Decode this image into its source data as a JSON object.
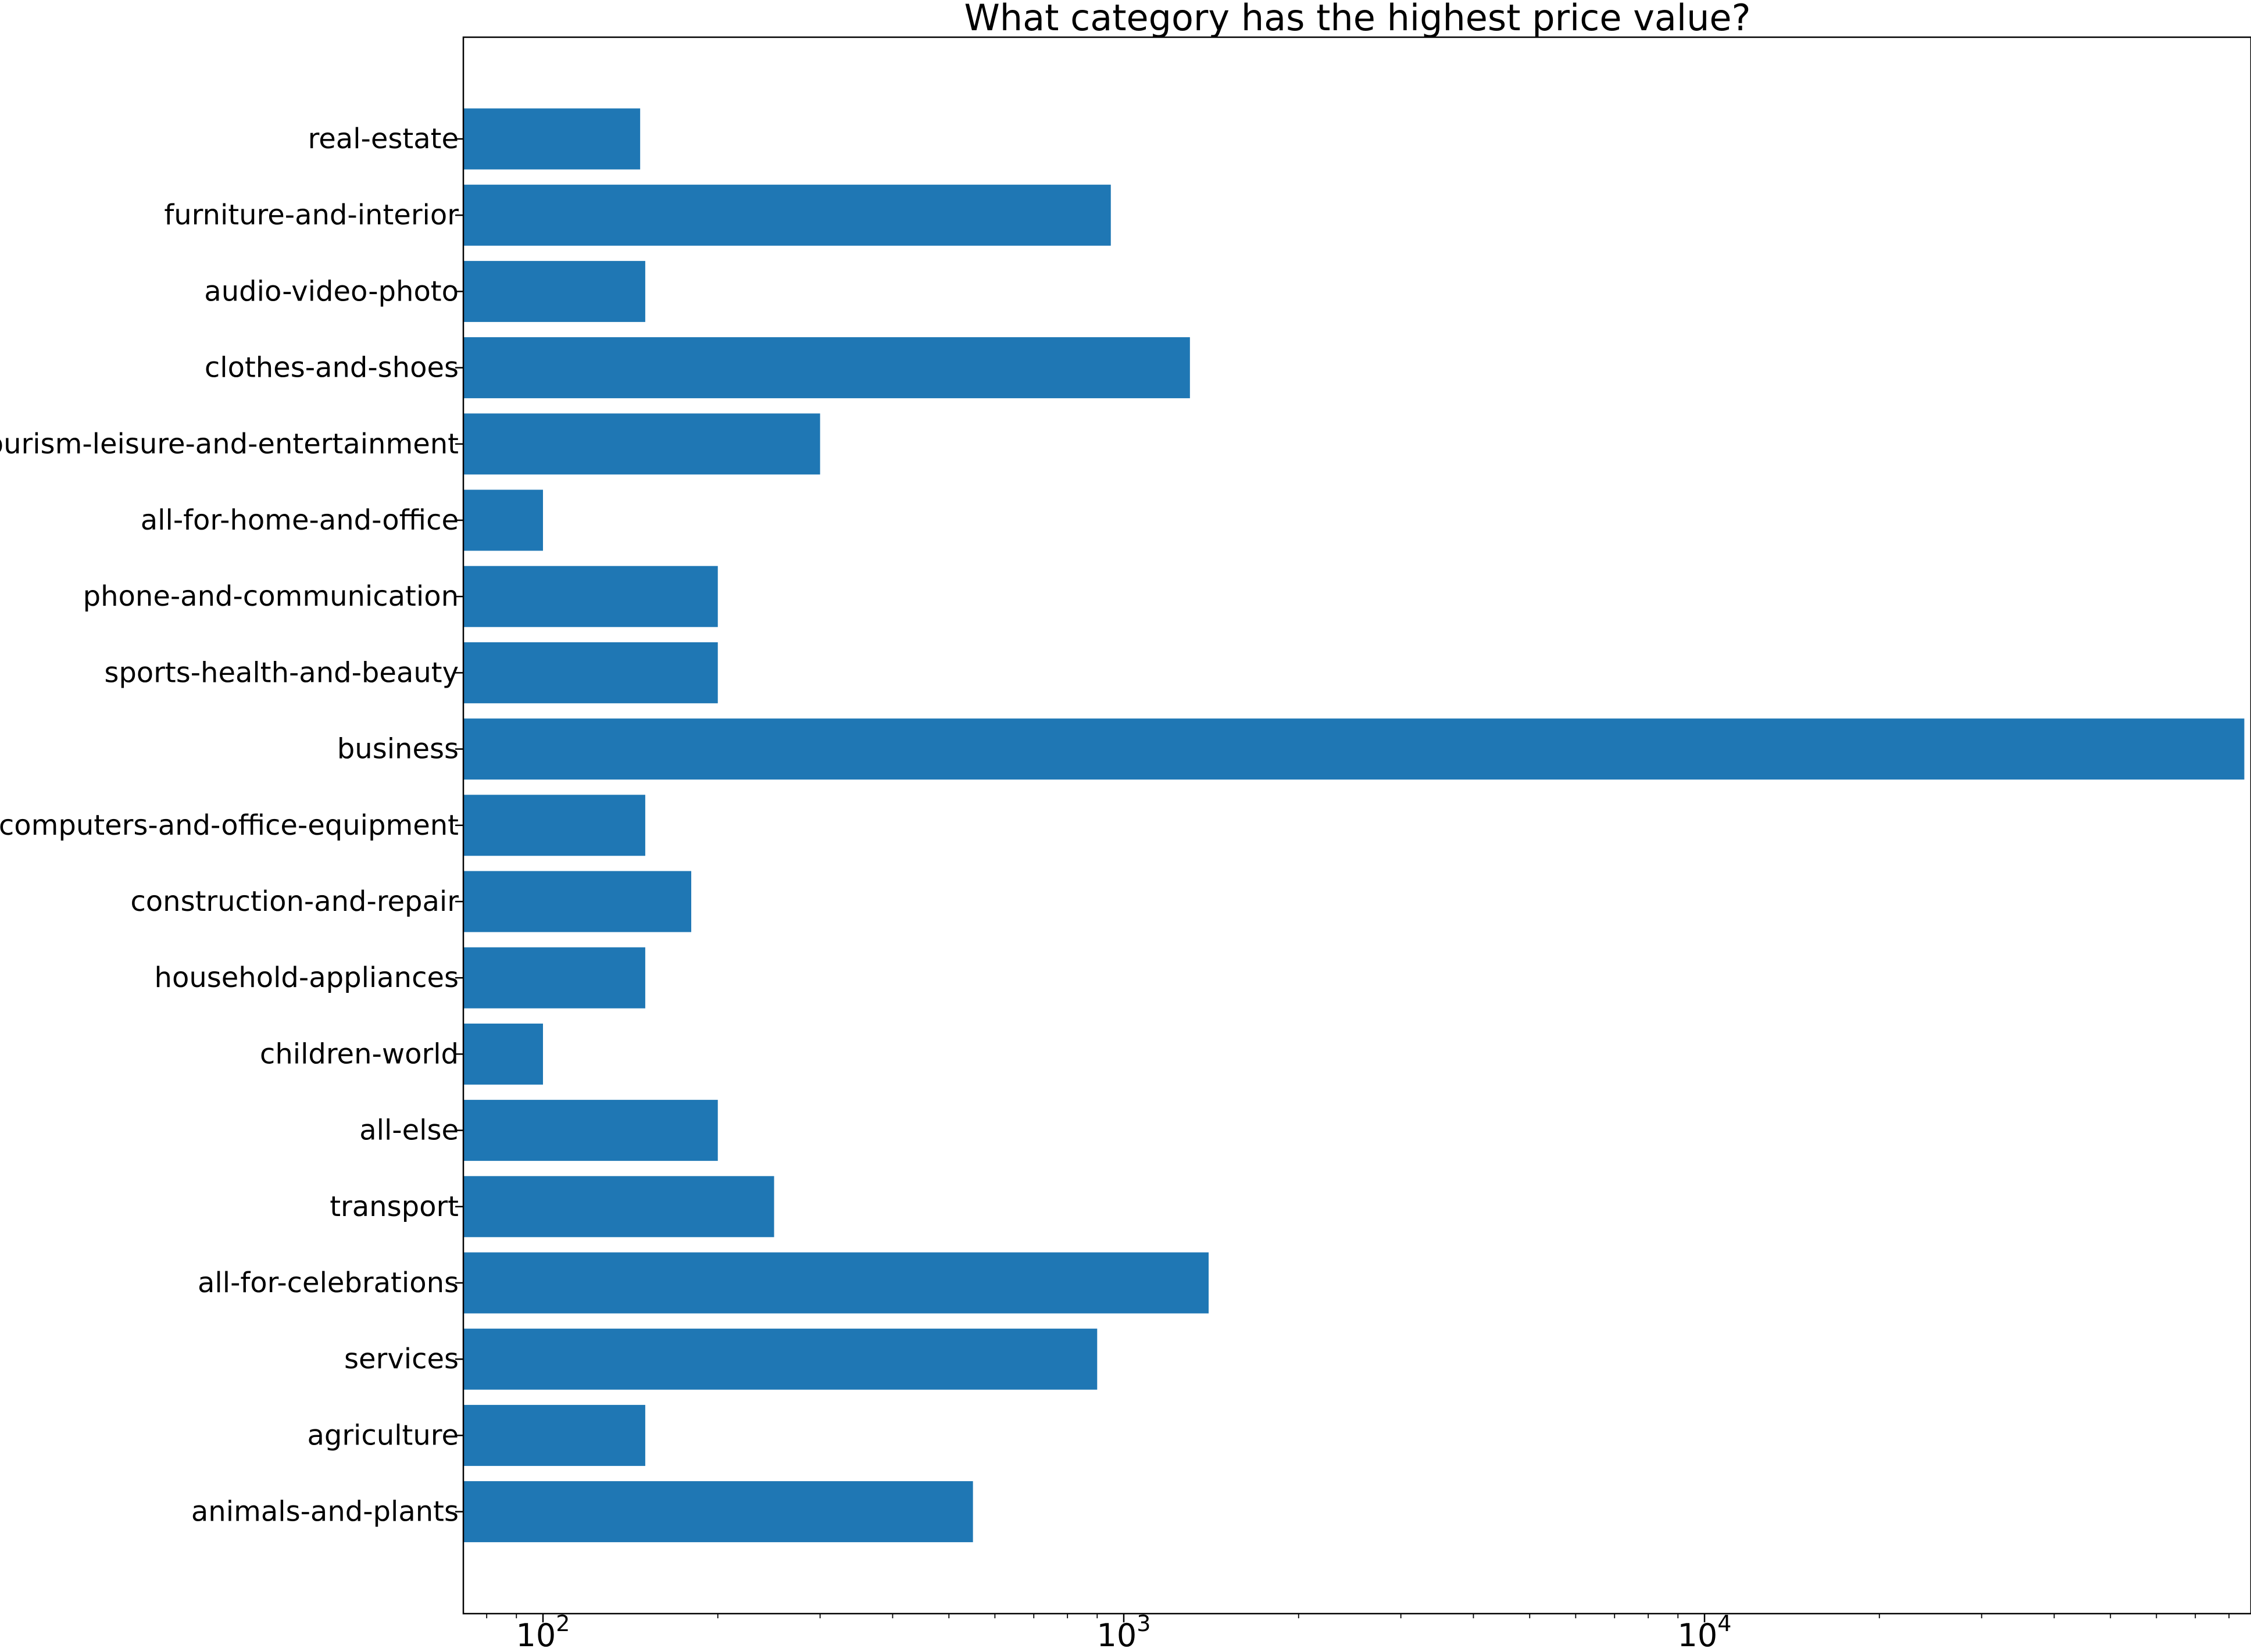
{
  "chart_data": {
    "type": "bar",
    "orientation": "horizontal",
    "title": "What category has the highest price value?",
    "xlabel": "",
    "ylabel": "",
    "x_scale": "log",
    "xlim": [
      72,
      97000
    ],
    "x_ticks": [
      {
        "value": 100,
        "base": "10",
        "exp": "2"
      },
      {
        "value": 1000,
        "base": "10",
        "exp": "3"
      },
      {
        "value": 10000,
        "base": "10",
        "exp": "4"
      }
    ],
    "grid": false,
    "legend": "none",
    "bar_color": "#1f77b4",
    "categories": [
      "real-estate",
      "furniture-and-interior",
      "audio-video-photo",
      "clothes-and-shoes",
      "tourism-leisure-and-entertainment",
      "all-for-home-and-office",
      "phone-and-communication",
      "sports-health-and-beauty",
      "business",
      "computers-and-office-equipment",
      "construction-and-repair",
      "household-appliances",
      "children-world",
      "all-else",
      "transport",
      "all-for-celebrations",
      "services",
      "agriculture",
      "animals-and-plants"
    ],
    "values": [
      147,
      950,
      150,
      1300,
      300,
      100,
      200,
      200,
      85000,
      150,
      180,
      150,
      100,
      200,
      250,
      1400,
      900,
      150,
      550
    ]
  }
}
